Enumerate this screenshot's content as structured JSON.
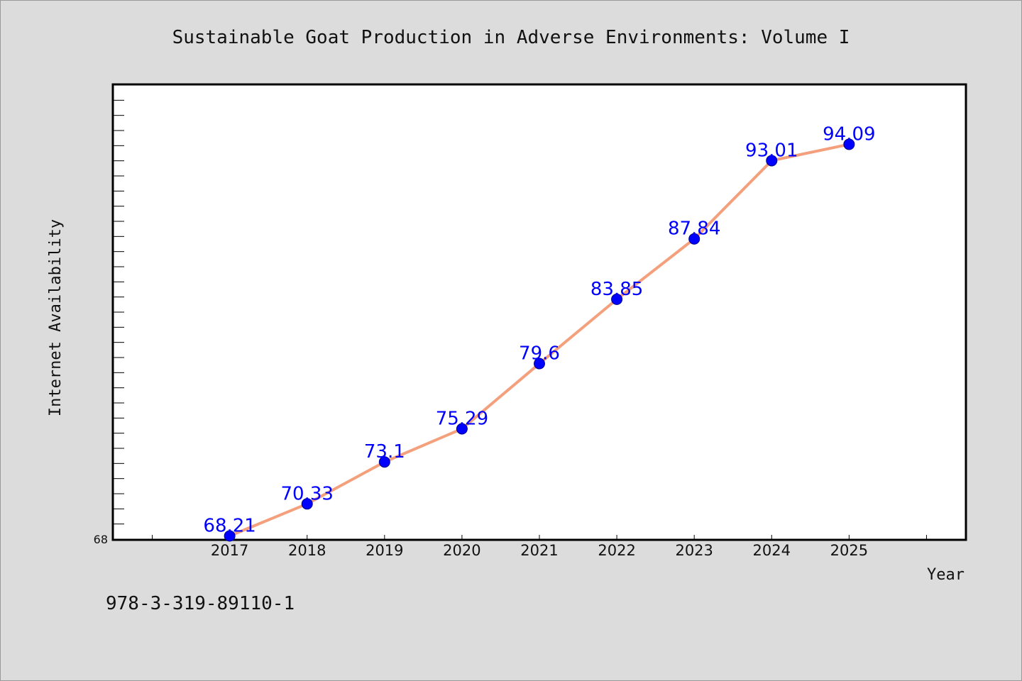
{
  "chart_data": {
    "type": "line",
    "title": "Sustainable Goat Production in Adverse Environments: Volume I",
    "xlabel": "Year",
    "ylabel": "Internet Availability",
    "x": [
      2017,
      2018,
      2019,
      2020,
      2021,
      2022,
      2023,
      2024,
      2025
    ],
    "x_tick_labels": [
      "2017",
      "2018",
      "2019",
      "2020",
      "2021",
      "2022",
      "2023",
      "2024",
      "2025"
    ],
    "series": [
      {
        "values": [
          68.21,
          70.33,
          73.1,
          75.29,
          79.6,
          83.85,
          87.84,
          93.01,
          94.09
        ],
        "data_labels": [
          "68.21",
          "70.33",
          "73.1",
          "75.29",
          "79.6",
          "83.85",
          "87.84",
          "93.01",
          "94.09"
        ]
      }
    ],
    "y_tick_labels": [
      "68"
    ],
    "ylim": [
      68,
      98
    ],
    "xlim": [
      2015.5,
      2026.5
    ],
    "y_minor_tick_step": 1,
    "grid": false,
    "colors": {
      "line": "#f4a07c",
      "marker": "#0000ff",
      "data_label": "#0000ff",
      "axis": "#000000",
      "plot_background": "#ffffff",
      "page_background": "#dcdcdc"
    }
  },
  "footer": {
    "isbn": "978-3-319-89110-1"
  }
}
